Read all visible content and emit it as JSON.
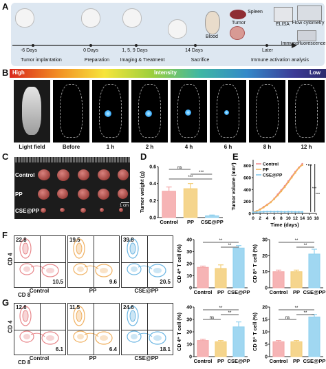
{
  "panel_labels": {
    "a": "A",
    "b": "B",
    "c": "C",
    "d": "D",
    "e": "E",
    "f": "F",
    "g": "G"
  },
  "timeline": {
    "days": [
      "-6 Days",
      "0 Days",
      "1, 5, 9 Days",
      "14 Days",
      "Later"
    ],
    "stages": [
      "Tumor implantation",
      "Preparation",
      "Imaging & Treatment",
      "Sacrifice",
      "Immune activation analysis"
    ],
    "organs": {
      "spleen": "Spleen",
      "blood": "Blood",
      "tumor": "Tumor"
    },
    "analysis": {
      "elisa": "ELISA",
      "flow": "Flow cytometry",
      "if": "Immunofluorescence"
    }
  },
  "imaging": {
    "high": "High",
    "intensity": "Intensity",
    "low": "Low",
    "labels": [
      "Light field",
      "Before",
      "1 h",
      "2 h",
      "4 h",
      "6 h",
      "8 h",
      "12 h"
    ]
  },
  "tumor_photo": {
    "groups": [
      "Control",
      "PP",
      "CSE@PP"
    ],
    "scale": "1 cm"
  },
  "chart_data": [
    {
      "id": "D",
      "type": "bar",
      "categories": [
        "Control",
        "PP",
        "CSE@PP"
      ],
      "values": [
        0.31,
        0.34,
        0.02
      ],
      "errors": [
        0.05,
        0.06,
        0.01
      ],
      "ylabel": "Tumor weight (g)",
      "ylim": [
        0,
        0.6
      ],
      "yticks": [
        "0.0",
        "0.2",
        "0.4",
        "0.6"
      ],
      "sig": [
        {
          "from": 0,
          "to": 1,
          "text": "ns"
        },
        {
          "from": 1,
          "to": 2,
          "text": "***"
        },
        {
          "from": 0,
          "to": 2,
          "text": "***"
        }
      ],
      "colors": [
        "#f4a7a8",
        "#f3ce79",
        "#8fd0ee"
      ]
    },
    {
      "id": "E",
      "type": "line",
      "xlabel": "Time (days)",
      "ylabel": "Tumor volume (mm³)",
      "x": [
        0,
        1,
        2,
        3,
        4,
        5,
        6,
        7,
        8,
        9,
        10,
        11,
        12,
        13,
        14
      ],
      "xticks": [
        "0",
        "2",
        "4",
        "6",
        "8",
        "10",
        "12",
        "14",
        "16",
        "18"
      ],
      "yticks": [
        "0",
        "200",
        "400",
        "600",
        "800"
      ],
      "ylim": [
        0,
        900
      ],
      "xlim": [
        0,
        18
      ],
      "series": [
        {
          "name": "Control",
          "color": "#f08b8e",
          "values": [
            20,
            40,
            70,
            110,
            150,
            190,
            250,
            320,
            390,
            460,
            540,
            620,
            700,
            770,
            830
          ]
        },
        {
          "name": "PP",
          "color": "#f2b455",
          "values": [
            20,
            38,
            65,
            100,
            140,
            185,
            240,
            300,
            370,
            440,
            520,
            600,
            680,
            760,
            810
          ]
        },
        {
          "name": "CSE@PP",
          "color": "#7fc6ea",
          "values": [
            20,
            22,
            25,
            28,
            30,
            30,
            28,
            30,
            28,
            26,
            28,
            27,
            25,
            26,
            25
          ]
        }
      ],
      "sig": [
        "ns",
        "***",
        "***"
      ]
    },
    {
      "id": "F-CD4",
      "type": "bar",
      "categories": [
        "Control",
        "PP",
        "CSE@PP"
      ],
      "values": [
        17,
        16,
        33
      ],
      "errors": [
        1,
        3,
        2
      ],
      "ylabel": "CD 4⁺ T cell (%)",
      "ylim": [
        0,
        40
      ],
      "yticks": [
        "0",
        "10",
        "20",
        "30",
        "40"
      ],
      "sig": [
        {
          "from": 0,
          "to": 2,
          "text": "**"
        },
        {
          "from": 1,
          "to": 2,
          "text": "**"
        }
      ],
      "colors": [
        "#f4a7a8",
        "#f3ce79",
        "#8fd0ee"
      ]
    },
    {
      "id": "F-CD8",
      "type": "bar",
      "categories": [
        "Control",
        "PP",
        "CSE@PP"
      ],
      "values": [
        10,
        10,
        21
      ],
      "errors": [
        1,
        1,
        3
      ],
      "ylabel": "CD 8⁺ T cell (%)",
      "ylim": [
        0,
        30
      ],
      "yticks": [
        "0",
        "10",
        "20",
        "30"
      ],
      "sig": [
        {
          "from": 0,
          "to": 2,
          "text": "**"
        },
        {
          "from": 1,
          "to": 2,
          "text": "**"
        }
      ],
      "colors": [
        "#f4a7a8",
        "#f3ce79",
        "#8fd0ee"
      ]
    },
    {
      "id": "G-CD4",
      "type": "bar",
      "categories": [
        "Control",
        "PP",
        "CSE@PP"
      ],
      "values": [
        13,
        12,
        24
      ],
      "errors": [
        1,
        1,
        4
      ],
      "ylabel": "CD 4⁺ T cell (%)",
      "ylim": [
        0,
        40
      ],
      "yticks": [
        "0",
        "10",
        "20",
        "30",
        "40"
      ],
      "sig": [
        {
          "from": 0,
          "to": 2,
          "text": "**"
        },
        {
          "from": 1,
          "to": 2,
          "text": "**"
        },
        {
          "from": 0,
          "to": 1,
          "text": "ns"
        }
      ],
      "colors": [
        "#f4a7a8",
        "#f3ce79",
        "#8fd0ee"
      ]
    },
    {
      "id": "G-CD8",
      "type": "bar",
      "categories": [
        "Control",
        "PP",
        "CSE@PP"
      ],
      "values": [
        6,
        6,
        16
      ],
      "errors": [
        0.5,
        0.5,
        1
      ],
      "ylabel": "CD 8⁺ T cell (%)",
      "ylim": [
        0,
        20
      ],
      "yticks": [
        "0",
        "5",
        "10",
        "15",
        "20"
      ],
      "sig": [
        {
          "from": 0,
          "to": 2,
          "text": "**"
        },
        {
          "from": 1,
          "to": 2,
          "text": "**"
        },
        {
          "from": 0,
          "to": 1,
          "text": "ns"
        }
      ],
      "colors": [
        "#f4a7a8",
        "#f3ce79",
        "#8fd0ee"
      ]
    }
  ],
  "flow": {
    "axis_y": "CD 4",
    "axis_x": "CD 8",
    "F": [
      {
        "group": "Control",
        "ul": "22.8",
        "lr": "10.5",
        "color": "#e8868a"
      },
      {
        "group": "PP",
        "ul": "19.5",
        "lr": "9.6",
        "color": "#f0b060"
      },
      {
        "group": "CSE@PP",
        "ul": "39.8",
        "lr": "20.5",
        "color": "#6cb6e3"
      }
    ],
    "G": [
      {
        "group": "Control",
        "ul": "12.6",
        "lr": "6.1",
        "color": "#e8868a"
      },
      {
        "group": "PP",
        "ul": "11.5",
        "lr": "6.4",
        "color": "#f0b060"
      },
      {
        "group": "CSE@PP",
        "ul": "24.6",
        "lr": "18.1",
        "color": "#6cb6e3"
      }
    ]
  }
}
